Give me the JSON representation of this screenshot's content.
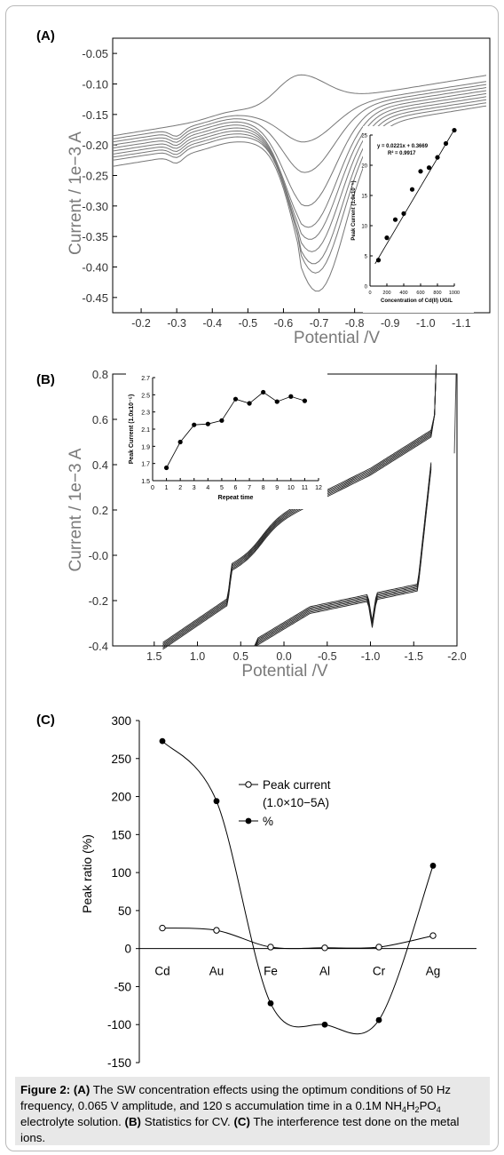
{
  "panels": [
    {
      "label": "(A)"
    },
    {
      "label": "(B)"
    },
    {
      "label": "(C)"
    }
  ],
  "chart_data": [
    {
      "type": "line",
      "panel": "A",
      "xlabel": "Potential /V",
      "ylabel": "Current / 1e−3 A",
      "x_ticks": [
        "-0.2",
        "-0.3",
        "-0.4",
        "-0.5",
        "-0.6",
        "-0.7",
        "-0.8",
        "-0.9",
        "-1.0",
        "-1.1"
      ],
      "x_tick_values": [
        -0.2,
        -0.3,
        -0.4,
        -0.5,
        -0.6,
        -0.7,
        -0.8,
        -0.9,
        -1.0,
        -1.1
      ],
      "y_ticks": [
        "-0.05",
        "-0.10",
        "-0.15",
        "-0.20",
        "-0.25",
        "-0.30",
        "-0.35",
        "-0.40",
        "-0.45"
      ],
      "y_tick_values": [
        -0.05,
        -0.1,
        -0.15,
        -0.2,
        -0.25,
        -0.3,
        -0.35,
        -0.4,
        -0.45
      ],
      "xlim": [
        -0.12,
        -1.18
      ],
      "ylim": [
        -0.025,
        -0.475
      ],
      "series": [
        {
          "peak": -0.085,
          "start": -0.185,
          "end": -0.085
        },
        {
          "peak": -0.195,
          "start": -0.19,
          "end": -0.095
        },
        {
          "peak": -0.245,
          "start": -0.195,
          "end": -0.1
        },
        {
          "peak": -0.3,
          "start": -0.2,
          "end": -0.105
        },
        {
          "peak": -0.335,
          "start": -0.205,
          "end": -0.11
        },
        {
          "peak": -0.355,
          "start": -0.21,
          "end": -0.115
        },
        {
          "peak": -0.375,
          "start": -0.215,
          "end": -0.12
        },
        {
          "peak": -0.395,
          "start": -0.22,
          "end": -0.125
        },
        {
          "peak": -0.41,
          "start": -0.225,
          "end": -0.13
        },
        {
          "peak": -0.44,
          "start": -0.235,
          "end": -0.135
        }
      ],
      "inset": {
        "equation": "y = 0.0221x + 0.3669",
        "r2": "R² = 0.9917",
        "xlabel": "Concentration of Cd(II) UG/L",
        "ylabel": "Peak Current (1.0x10⁻⁵)",
        "x_ticks": [
          "0",
          "200",
          "400",
          "600",
          "800",
          "1000"
        ],
        "y_ticks": [
          "0",
          "5",
          "10",
          "15",
          "20",
          "25"
        ],
        "xlim": [
          0,
          1000
        ],
        "ylim": [
          0,
          25
        ],
        "x": [
          100,
          200,
          300,
          400,
          500,
          600,
          700,
          800,
          900,
          1000
        ],
        "y": [
          4.3,
          8.0,
          11.0,
          12.0,
          16.0,
          19.0,
          19.6,
          21.3,
          23.6,
          25.8
        ]
      }
    },
    {
      "type": "line",
      "panel": "B",
      "xlabel": "Potential /V",
      "ylabel": "Current / 1e−3 A",
      "x_ticks": [
        "1.5",
        "1.0",
        "0.5",
        "0.0",
        "-0.5",
        "-1.0",
        "-1.5",
        "-2.0"
      ],
      "x_tick_values": [
        1.5,
        1.0,
        0.5,
        0.0,
        -0.5,
        -1.0,
        -1.5,
        -2.0
      ],
      "y_ticks": [
        "0.8",
        "0.6",
        "0.4",
        "0.2",
        "-0.0",
        "-0.2",
        "-0.4"
      ],
      "y_tick_values": [
        0.8,
        0.6,
        0.4,
        0.2,
        0.0,
        -0.2,
        -0.4
      ],
      "xlim": [
        1.98,
        -2.0
      ],
      "ylim": [
        -0.4,
        0.8
      ],
      "inset": {
        "xlabel": "Repeat time",
        "ylabel": "Peak Current (1.0x10⁻⁵)",
        "x_ticks": [
          "0",
          "1",
          "2",
          "3",
          "4",
          "5",
          "6",
          "7",
          "8",
          "9",
          "10",
          "11",
          "12"
        ],
        "y_ticks": [
          "1.5",
          "1.7",
          "1.9",
          "2.1",
          "2.3",
          "2.5",
          "2.7"
        ],
        "xlim": [
          0,
          12
        ],
        "ylim": [
          1.5,
          2.7
        ],
        "x": [
          1,
          2,
          3,
          4,
          5,
          6,
          7,
          8,
          9,
          10,
          11
        ],
        "y": [
          1.65,
          1.95,
          2.15,
          2.16,
          2.2,
          2.45,
          2.4,
          2.53,
          2.42,
          2.48,
          2.43
        ]
      }
    },
    {
      "type": "line",
      "panel": "C",
      "ylabel": "Peak ratio (%)",
      "categories": [
        "Cd",
        "Au",
        "Fe",
        "Al",
        "Cr",
        "Ag"
      ],
      "y_ticks": [
        "300",
        "250",
        "200",
        "150",
        "100",
        "50",
        "0",
        "-50",
        "-100",
        "-150"
      ],
      "y_tick_values": [
        300,
        250,
        200,
        150,
        100,
        50,
        0,
        -50,
        -100,
        -150
      ],
      "ylim": [
        -150,
        300
      ],
      "legend_position": "top-right",
      "series": [
        {
          "name": "Peak current (1.0×10−5A)",
          "marker": "open-circle",
          "values": [
            27,
            24,
            2,
            1,
            2,
            17
          ]
        },
        {
          "name": "%",
          "marker": "filled-circle",
          "values": [
            273,
            194,
            -72,
            -100,
            -94,
            109
          ]
        }
      ]
    }
  ],
  "caption": {
    "fig_label": "Figure 2:",
    "a": "(A)",
    "a_text": " The SW concentration effects using the optimum conditions of 50 Hz frequency, 0.065 V amplitude, and 120 s accumulation time in a 0.1M NH",
    "sub4": "4",
    "h": "H",
    "sub2": "2",
    "po": "PO",
    "sub4b": "4",
    "a_tail": " electrolyte solution. ",
    "b": "(B)",
    "b_text": " Statistics for CV. ",
    "c": "(C)",
    "c_text": " The interference test done on the metal ions."
  },
  "colors": {
    "curve_gray": "#777777",
    "axis": "#000000",
    "text_gray": "#7a7a7a",
    "caption_bg": "#e8e8e8"
  }
}
